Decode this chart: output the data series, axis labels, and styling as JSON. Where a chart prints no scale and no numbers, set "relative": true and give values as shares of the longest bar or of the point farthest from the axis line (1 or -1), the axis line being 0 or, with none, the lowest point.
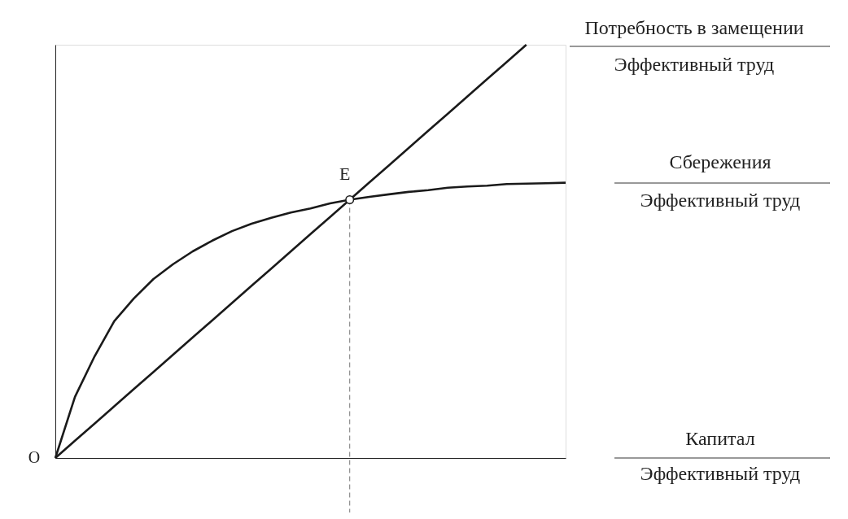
{
  "chart_data": {
    "type": "line",
    "relative": true,
    "xlabel": "Капитал\nЭффективный труд",
    "categories": [
      null,
      null,
      null,
      null,
      null,
      null,
      null,
      null,
      null,
      null,
      null,
      null,
      null,
      null,
      null,
      null,
      null,
      null,
      null,
      null,
      null,
      null,
      null,
      null,
      null,
      null,
      null
    ],
    "series": [
      {
        "name": "Потребность в замещении\nЭффективный труд",
        "color": "#1a1a1a",
        "values": [
          0,
          0.042,
          0.083,
          0.125,
          0.167,
          0.208,
          0.25,
          0.292,
          0.333,
          0.375,
          0.417,
          0.458,
          0.5,
          0.542,
          0.583,
          0.625,
          0.667,
          0.708,
          0.75,
          0.792,
          0.833,
          0.875,
          0.917,
          0.958,
          1,
          null,
          null
        ]
      },
      {
        "name": "Сбережения\nЭффективный труд",
        "color": "#1a1a1a",
        "values": [
          0,
          0.148,
          0.246,
          0.331,
          0.386,
          0.433,
          0.469,
          0.5,
          0.526,
          0.549,
          0.567,
          0.581,
          0.594,
          0.604,
          0.616,
          0.625,
          0.632,
          0.638,
          0.644,
          0.648,
          0.654,
          0.657,
          0.659,
          0.663,
          0.664,
          0.665,
          0.666
        ]
      }
    ],
    "annotations": [
      "O",
      "E"
    ],
    "tick_labels": false,
    "grid": false,
    "legend": false,
    "marker": "none",
    "line_style": "solid"
  }
}
